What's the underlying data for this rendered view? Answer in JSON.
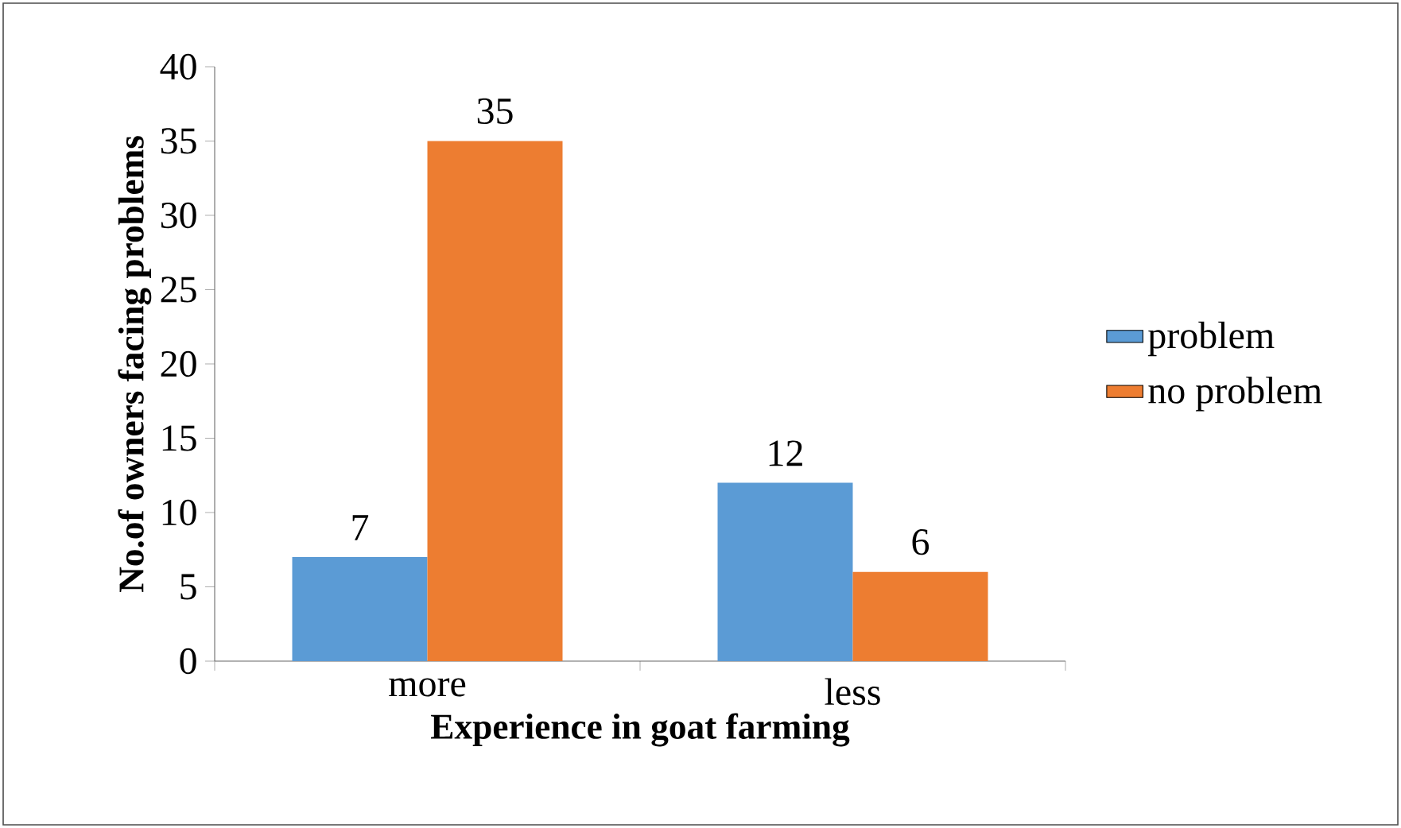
{
  "chart_data": {
    "type": "bar",
    "xlabel": "Experience in goat farming",
    "ylabel": "No.of owners facing problems",
    "categories": [
      "more",
      "less"
    ],
    "series": [
      {
        "name": "problem",
        "color": "#5b9bd5",
        "values": [
          7,
          12
        ]
      },
      {
        "name": "no problem",
        "color": "#ed7d31",
        "values": [
          35,
          6
        ]
      }
    ],
    "ylim": [
      0,
      40
    ],
    "yticks": [
      0,
      5,
      10,
      15,
      20,
      25,
      30,
      35,
      40
    ],
    "data_labels": true,
    "grid": false,
    "legend": "right"
  }
}
